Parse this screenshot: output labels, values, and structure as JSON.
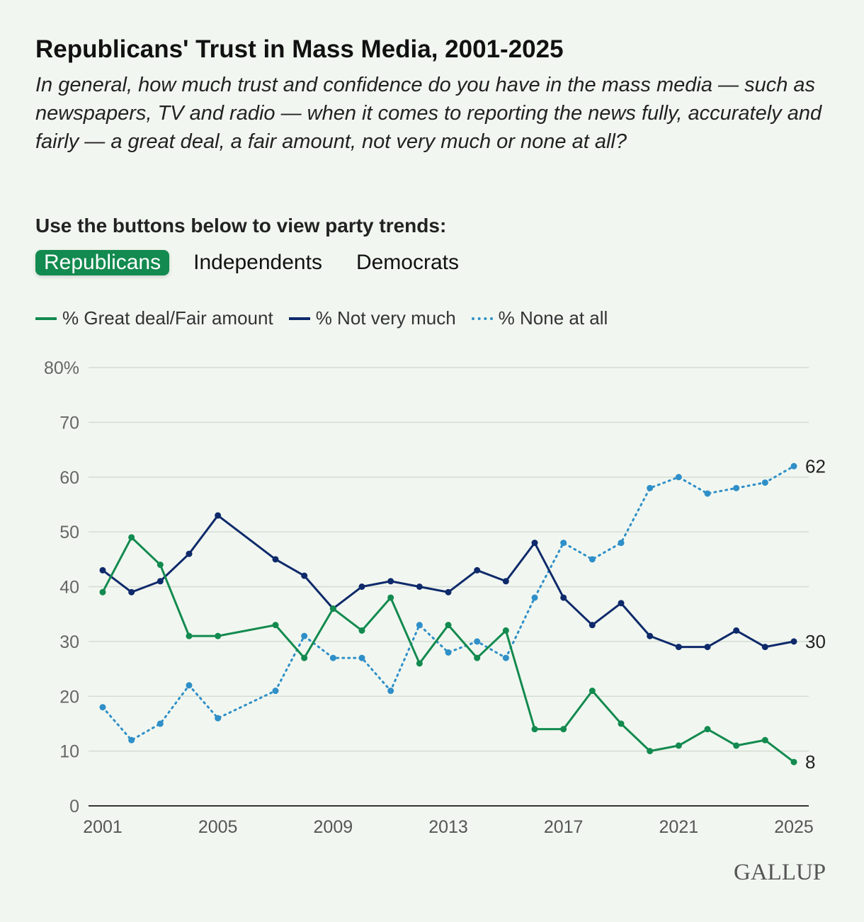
{
  "title": "Republicans' Trust in Mass Media, 2001-2025",
  "subtitle": "In general, how much trust and confidence do you have in the mass media — such as newspapers, TV and radio — when it comes to reporting the news fully, accurately and fairly — a great deal, a fair amount, not very much or none at all?",
  "prompt": "Use the buttons below to view party trends:",
  "buttons": [
    {
      "label": "Republicans",
      "active": true
    },
    {
      "label": "Independents",
      "active": false
    },
    {
      "label": "Democrats",
      "active": false
    }
  ],
  "logo": "GALLUP",
  "chart_data": {
    "type": "line",
    "ylim": [
      0,
      80
    ],
    "yticks": [
      0,
      10,
      20,
      30,
      40,
      50,
      60,
      70,
      80
    ],
    "ytick_labels": [
      "0",
      "10",
      "20",
      "30",
      "40",
      "50",
      "60",
      "70",
      "80%"
    ],
    "xticks": [
      2001,
      2005,
      2009,
      2013,
      2017,
      2021,
      2025
    ],
    "x": [
      2001,
      2002,
      2003,
      2004,
      2005,
      2007,
      2008,
      2009,
      2010,
      2011,
      2012,
      2013,
      2014,
      2015,
      2016,
      2017,
      2018,
      2019,
      2020,
      2021,
      2022,
      2023,
      2024,
      2025
    ],
    "legend_position": "top-left",
    "series": [
      {
        "name": "% Great deal/Fair amount",
        "color": "#138a4f",
        "dashed": false,
        "end_label": "8",
        "values": [
          39,
          49,
          44,
          31,
          31,
          33,
          27,
          36,
          32,
          38,
          26,
          33,
          27,
          32,
          14,
          14,
          21,
          15,
          10,
          11,
          14,
          11,
          12,
          8
        ]
      },
      {
        "name": "% Not very much",
        "color": "#0f2a6b",
        "dashed": false,
        "end_label": "30",
        "values": [
          43,
          39,
          41,
          46,
          53,
          45,
          42,
          36,
          40,
          41,
          40,
          39,
          43,
          41,
          48,
          38,
          33,
          37,
          31,
          29,
          29,
          32,
          29,
          30
        ]
      },
      {
        "name": "% None at all",
        "color": "#2f8fc8",
        "dashed": true,
        "end_label": "62",
        "values": [
          18,
          12,
          15,
          22,
          16,
          21,
          31,
          27,
          27,
          21,
          33,
          28,
          30,
          27,
          38,
          48,
          45,
          48,
          58,
          60,
          57,
          58,
          59,
          62
        ]
      }
    ]
  }
}
